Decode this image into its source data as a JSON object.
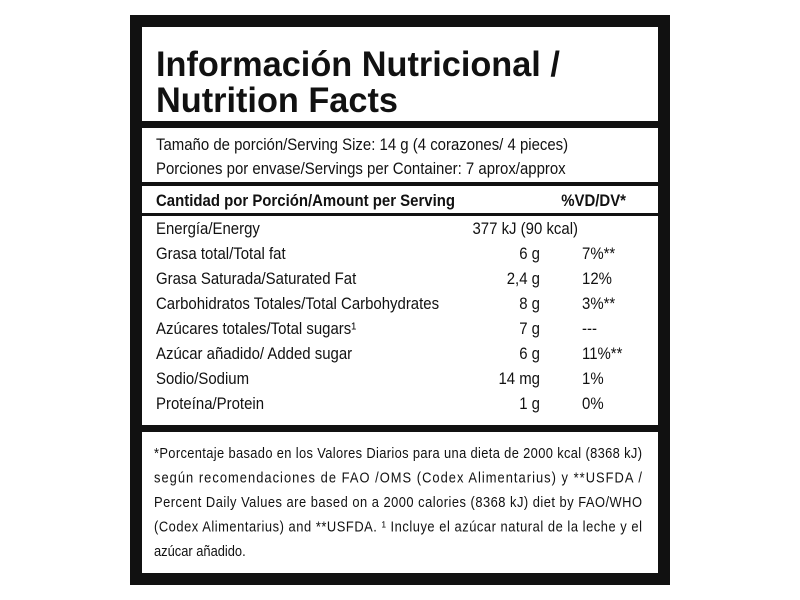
{
  "header": {
    "title": [
      "Información Nutricional /",
      "Nutrition Facts"
    ]
  },
  "serving": [
    "Tamaño de porción/Serving Size: 14 g (4 corazones/ 4 pieces)",
    "Porciones por envase/Servings per Container: 7 aprox/approx"
  ],
  "table": {
    "header": [
      "Cantidad por Porción/Amount per Serving",
      "%VD/DV*"
    ],
    "energy": [
      "Energía/Energy",
      "377 kJ (90 kcal)"
    ],
    "rows": [
      [
        "Grasa total/Total fat",
        "6 g",
        "7%**"
      ],
      [
        "Grasa Saturada/Saturated Fat",
        "2,4 g",
        "12%"
      ],
      [
        "Carbohidratos Totales/Total Carbohydrates",
        "8 g",
        "3%**"
      ],
      [
        "Azúcares totales/Total sugars¹",
        "7 g",
        "---"
      ],
      [
        "Azúcar añadido/ Added sugar",
        "6 g",
        "11%**"
      ],
      [
        "Sodio/Sodium",
        "14 mg",
        "1%"
      ],
      [
        "Proteína/Protein",
        "1 g",
        "0%"
      ]
    ]
  },
  "footnote": [
    "*Porcentaje basado en los Valores Diarios para una dieta de 2000 kcal (8368 kJ)",
    "según recomendaciones de FAO /OMS (Codex Alimentarius) y **USFDA /",
    "Percent Daily Values are based on a 2000 calories (8368 kJ) diet by FAO/WHO",
    "(Codex Alimentarius) and **USFDA. ¹ Incluye el azúcar natural de la leche y el",
    "azúcar añadido."
  ]
}
